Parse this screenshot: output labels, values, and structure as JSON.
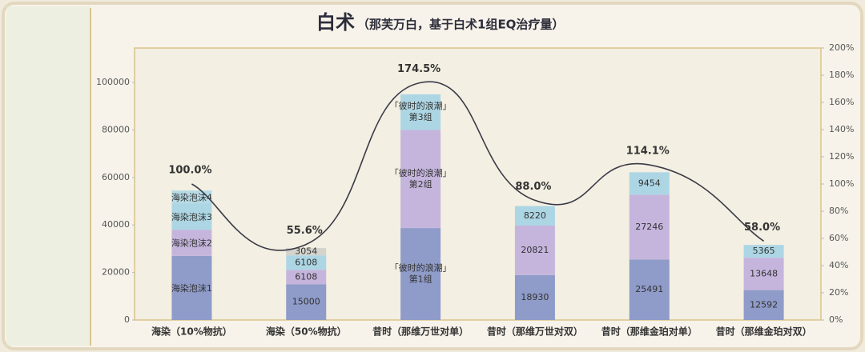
{
  "chart_data": {
    "type": "stacked-bar-line",
    "title": "白术",
    "subtitle": "（那芙万白，基于白术1组EQ治疗量）",
    "categories": [
      "海染（10%物抗）",
      "海染（50%物抗）",
      "昔时（那维万世对单）",
      "昔时（那维万世对双）",
      "昔时（那维金珀对单）",
      "昔时（那维金珀对双）"
    ],
    "series": [
      {
        "color": "#8f9bc8",
        "values": [
          27000,
          15000,
          38700,
          18930,
          25491,
          12592
        ],
        "value_labels": [
          "海染泡沫1",
          null,
          "「彼时的浪潮」第1组",
          null,
          null,
          null
        ]
      },
      {
        "color": "#c5b5dd",
        "values": [
          11000,
          6108,
          41300,
          20821,
          27246,
          13648
        ],
        "value_labels": [
          "海染泡沫2",
          null,
          "「彼时的浪潮」第2组",
          null,
          null,
          null
        ]
      },
      {
        "color": "#add6e4",
        "values": [
          11000,
          6108,
          15000,
          8220,
          9454,
          5365
        ],
        "value_labels": [
          "海染泡沫3",
          null,
          "「彼时的浪潮」第3组",
          null,
          null,
          null
        ]
      },
      {
        "color": "#b7dbe6",
        "values": [
          5500,
          3054,
          null,
          null,
          null,
          null
        ],
        "value_labels": [
          "海染泡沫4",
          null,
          null,
          null,
          null,
          null
        ]
      },
      {
        "type": "line",
        "axis": "y2",
        "color": "#3a3a48",
        "values": [
          100.0,
          55.6,
          174.5,
          88.0,
          114.1,
          58.0
        ],
        "value_labels": [
          "100.0%",
          "55.6%",
          "174.5%",
          "88.0%",
          "114.1%",
          "58.0%"
        ]
      }
    ],
    "ylim": [
      0,
      114500
    ],
    "yticks": [
      0,
      20000,
      40000,
      60000,
      80000,
      100000
    ],
    "y2lim": [
      0,
      200
    ],
    "y2ticks": [
      {
        "value": 0,
        "label": "0%"
      },
      {
        "value": 20,
        "label": "20%"
      },
      {
        "value": 40,
        "label": "40%"
      },
      {
        "value": 60,
        "label": "60%"
      },
      {
        "value": 80,
        "label": "80%"
      },
      {
        "value": 100,
        "label": "100%"
      },
      {
        "value": 120,
        "label": "120%"
      },
      {
        "value": 140,
        "label": "140%"
      },
      {
        "value": 160,
        "label": "160%"
      },
      {
        "value": 180,
        "label": "180%"
      },
      {
        "value": 200,
        "label": "200%"
      }
    ]
  }
}
